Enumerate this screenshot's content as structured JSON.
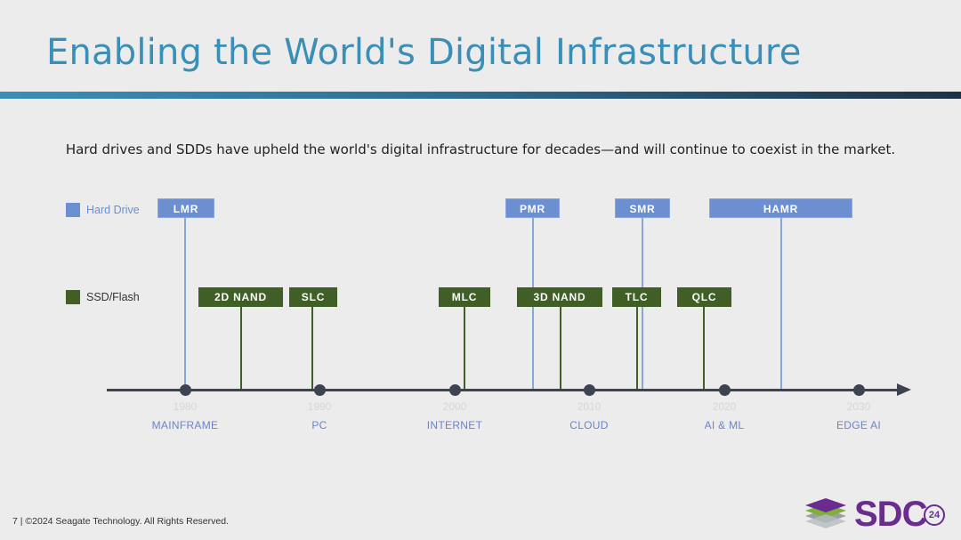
{
  "slide": {
    "title": "Enabling the World's Digital Infrastructure",
    "subtitle": "Hard drives and SDDs have upheld the world's digital infrastructure for decades—and will continue to coexist in the market."
  },
  "legend": {
    "hard_drive": "Hard Drive",
    "ssd_flash": "SSD/Flash"
  },
  "colors": {
    "hard_drive": "#6b8fd1",
    "ssd_flash": "#3f5f27",
    "title": "#3a8fb7",
    "era_label": "#6a84c6"
  },
  "timeline": {
    "eras": [
      {
        "year": "1980",
        "label": "MAINFRAME"
      },
      {
        "year": "1990",
        "label": "PC"
      },
      {
        "year": "2000",
        "label": "INTERNET"
      },
      {
        "year": "2010",
        "label": "CLOUD"
      },
      {
        "year": "2020",
        "label": "AI & ML"
      },
      {
        "year": "2030",
        "label": "EDGE AI"
      }
    ],
    "hard_drive_techs": [
      "LMR",
      "PMR",
      "SMR",
      "HAMR"
    ],
    "ssd_techs": [
      "2D NAND",
      "SLC",
      "MLC",
      "3D NAND",
      "TLC",
      "QLC"
    ]
  },
  "footer": {
    "text": "7 | ©2024 Seagate Technology. All Rights Reserved."
  },
  "logo": {
    "text": "SDC",
    "badge": "24"
  }
}
